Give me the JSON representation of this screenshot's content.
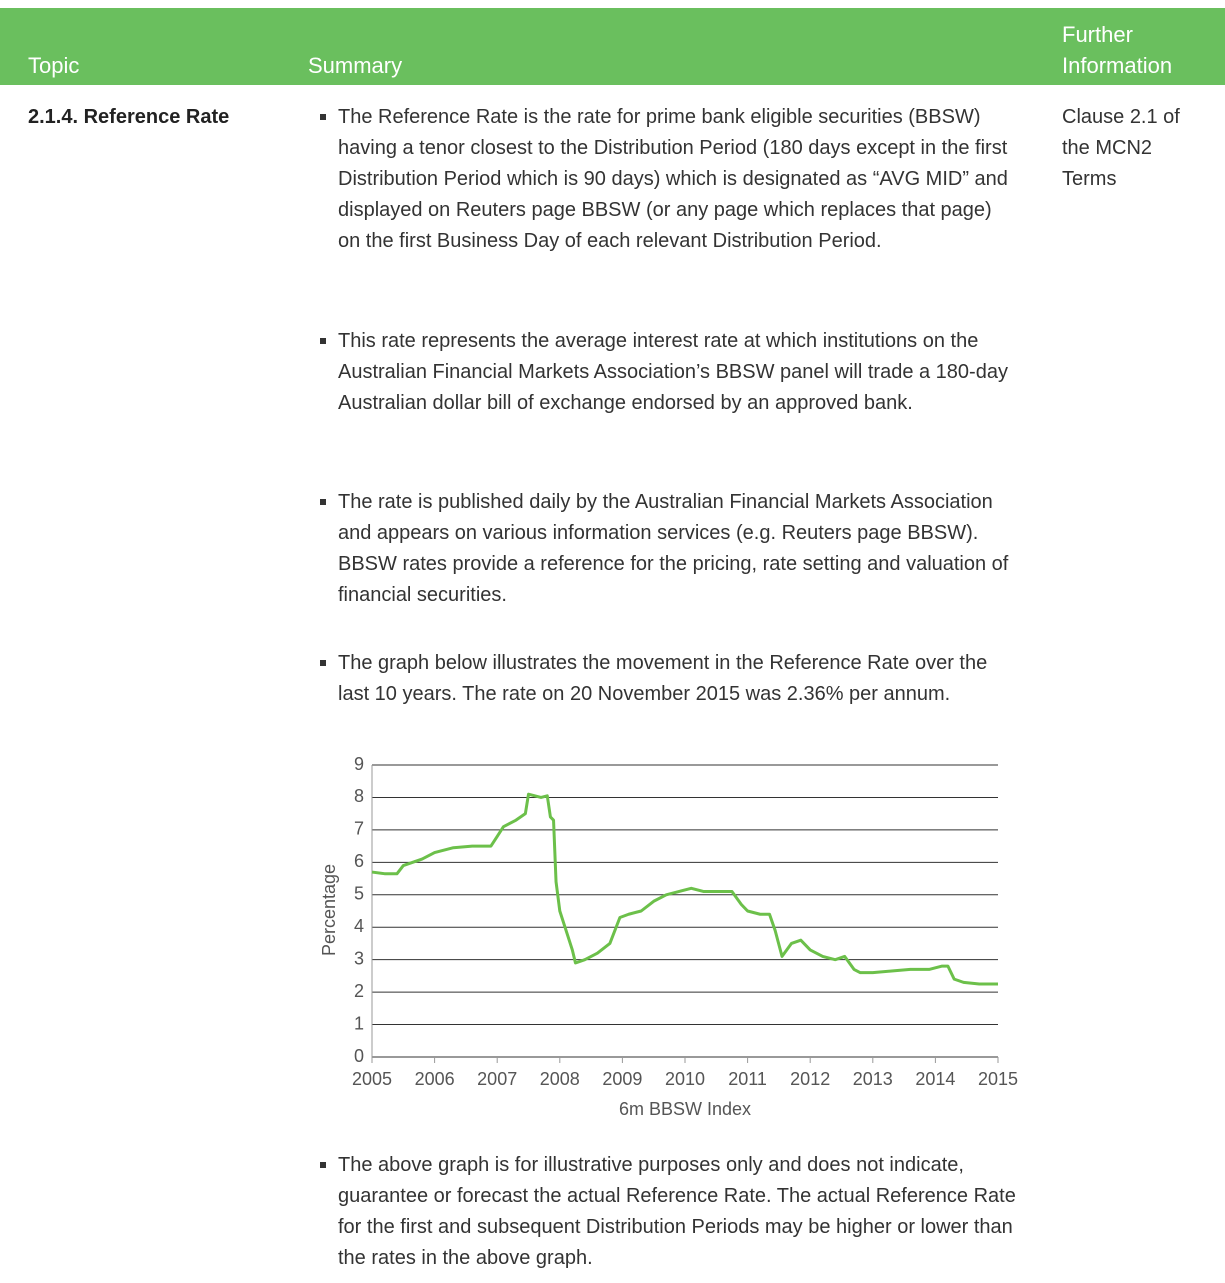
{
  "table": {
    "header": [
      "Topic",
      "Summary",
      "Further Information"
    ],
    "rows": [
      {
        "topic": "2.1.4. Reference Rate",
        "summary": [
          "The Reference Rate is the rate for prime bank eligible securities (BBSW) having a tenor closest to the Distribution Period (180 days except in the first Distribution Period which is 90 days) which is designated as “AVG MID” and displayed on Reuters page BBSW (or any page which replaces that page) on the first Business Day of each relevant Distribution Period.",
          "This rate represents the average interest rate at which institutions on the Australian Financial Markets Association’s BBSW panel will trade a 180-day Australian dollar bill of exchange endorsed by an approved bank.",
          "The rate is published daily by the Australian Financial Markets Association and appears on various information services (e.g. Reuters page BBSW). BBSW rates provide a reference for the pricing, rate setting and valuation of financial securities.",
          "The graph below illustrates the movement in the Reference Rate over the last 10 years. The rate on 20 November 2015 was 2.36% per annum."
        ],
        "after_chart": "The above graph is for illustrative purposes only and does not indicate, guarantee or forecast the actual Reference Rate. The actual Reference Rate for the first and subsequent Distribution Periods may be higher or lower than the rates in the above graph.",
        "further": "Clause 2.1 of the MCN2 Terms"
      }
    ]
  },
  "chart_data": {
    "type": "line",
    "x_label": "6m BBSW Index",
    "y_label": "Percentage",
    "x": [
      2005.0,
      2005.2,
      2005.4,
      2005.5,
      2005.8,
      2006.0,
      2006.3,
      2006.6,
      2006.9,
      2007.0,
      2007.1,
      2007.3,
      2007.45,
      2007.5,
      2007.7,
      2007.8,
      2007.85,
      2007.9,
      2007.94,
      2008.0,
      2008.1,
      2008.2,
      2008.25,
      2008.4,
      2008.6,
      2008.8,
      2008.96,
      2009.1,
      2009.3,
      2009.5,
      2009.7,
      2009.9,
      2010.1,
      2010.3,
      2010.5,
      2010.75,
      2010.9,
      2011.0,
      2011.2,
      2011.35,
      2011.44,
      2011.55,
      2011.7,
      2011.85,
      2012.0,
      2012.2,
      2012.4,
      2012.55,
      2012.7,
      2012.8,
      2013.0,
      2013.3,
      2013.6,
      2013.9,
      2014.1,
      2014.2,
      2014.3,
      2014.45,
      2014.7,
      2015.0
    ],
    "series": [
      {
        "name": "6m BBSW",
        "color": "#6cc04a",
        "values": [
          5.7,
          5.65,
          5.65,
          5.9,
          6.1,
          6.3,
          6.45,
          6.5,
          6.5,
          6.8,
          7.1,
          7.3,
          7.5,
          8.1,
          8.0,
          8.05,
          7.4,
          7.3,
          5.4,
          4.5,
          3.9,
          3.3,
          2.9,
          3.0,
          3.2,
          3.5,
          4.3,
          4.4,
          4.5,
          4.8,
          5.0,
          5.1,
          5.2,
          5.1,
          5.1,
          5.1,
          4.7,
          4.5,
          4.4,
          4.4,
          3.9,
          3.1,
          3.5,
          3.6,
          3.3,
          3.1,
          3.0,
          3.1,
          2.7,
          2.6,
          2.6,
          2.65,
          2.7,
          2.7,
          2.8,
          2.8,
          2.4,
          2.3,
          2.25,
          2.25
        ]
      }
    ],
    "xlim": [
      2005,
      2015
    ],
    "xticks": [
      2005,
      2006,
      2007,
      2008,
      2009,
      2010,
      2011,
      2012,
      2013,
      2014,
      2015
    ],
    "ylim": [
      0,
      9
    ],
    "yticks": [
      0,
      1,
      2,
      3,
      4,
      5,
      6,
      7,
      8,
      9
    ],
    "grid": true
  }
}
